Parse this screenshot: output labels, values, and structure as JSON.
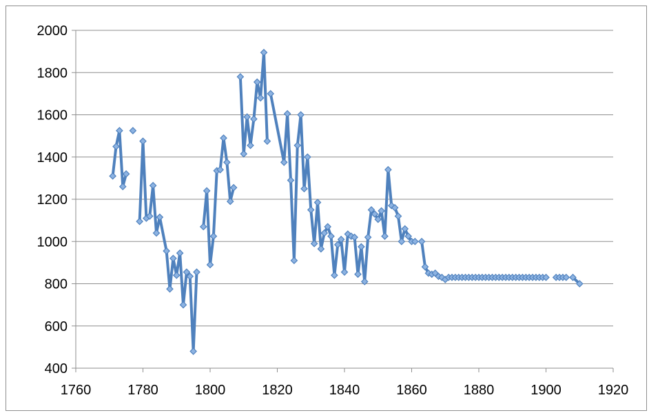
{
  "chart_data": {
    "type": "line",
    "title": "",
    "xlabel": "",
    "ylabel": "",
    "xlim": [
      1760,
      1920
    ],
    "ylim": [
      400,
      2000
    ],
    "x_ticks": [
      1760,
      1780,
      1800,
      1820,
      1840,
      1860,
      1880,
      1900,
      1920
    ],
    "y_ticks": [
      400,
      600,
      800,
      1000,
      1200,
      1400,
      1600,
      1800,
      2000
    ],
    "grid": true,
    "legend": "none",
    "colors": {
      "series": "#4f81bd",
      "marker": "#8db3e2",
      "grid": "#8e8e8e",
      "axis": "#8e8e8e"
    },
    "series": [
      {
        "values": [
          [
            1771,
            1310
          ],
          [
            1772,
            1450
          ],
          [
            1773,
            1525
          ],
          [
            1774,
            1260
          ],
          [
            1775,
            1320
          ],
          [
            1777,
            1525
          ],
          [
            1779,
            1095
          ],
          [
            1780,
            1475
          ],
          [
            1781,
            1110
          ],
          [
            1782,
            1120
          ],
          [
            1783,
            1265
          ],
          [
            1784,
            1040
          ],
          [
            1785,
            1115
          ],
          [
            1787,
            955
          ],
          [
            1788,
            775
          ],
          [
            1789,
            920
          ],
          [
            1790,
            840
          ],
          [
            1791,
            945
          ],
          [
            1792,
            700
          ],
          [
            1793,
            855
          ],
          [
            1794,
            835
          ],
          [
            1795,
            480
          ],
          [
            1796,
            855
          ],
          [
            1798,
            1070
          ],
          [
            1799,
            1240
          ],
          [
            1800,
            890
          ],
          [
            1801,
            1025
          ],
          [
            1802,
            1335
          ],
          [
            1803,
            1340
          ],
          [
            1804,
            1490
          ],
          [
            1805,
            1375
          ],
          [
            1806,
            1190
          ],
          [
            1807,
            1255
          ],
          [
            1809,
            1780
          ],
          [
            1810,
            1415
          ],
          [
            1811,
            1590
          ],
          [
            1812,
            1455
          ],
          [
            1813,
            1580
          ],
          [
            1814,
            1755
          ],
          [
            1815,
            1680
          ],
          [
            1816,
            1895
          ],
          [
            1817,
            1475
          ],
          [
            1818,
            1700
          ],
          [
            1822,
            1375
          ],
          [
            1823,
            1605
          ],
          [
            1824,
            1290
          ],
          [
            1825,
            910
          ],
          [
            1826,
            1455
          ],
          [
            1827,
            1600
          ],
          [
            1828,
            1250
          ],
          [
            1829,
            1400
          ],
          [
            1830,
            1150
          ],
          [
            1831,
            990
          ],
          [
            1832,
            1185
          ],
          [
            1833,
            965
          ],
          [
            1834,
            1040
          ],
          [
            1835,
            1070
          ],
          [
            1836,
            1025
          ],
          [
            1837,
            840
          ],
          [
            1838,
            985
          ],
          [
            1839,
            1010
          ],
          [
            1840,
            855
          ],
          [
            1841,
            1035
          ],
          [
            1842,
            1025
          ],
          [
            1843,
            1020
          ],
          [
            1844,
            845
          ],
          [
            1845,
            975
          ],
          [
            1846,
            810
          ],
          [
            1847,
            1020
          ],
          [
            1848,
            1150
          ],
          [
            1849,
            1130
          ],
          [
            1850,
            1105
          ],
          [
            1851,
            1145
          ],
          [
            1852,
            1025
          ],
          [
            1853,
            1340
          ],
          [
            1854,
            1170
          ],
          [
            1855,
            1160
          ],
          [
            1856,
            1120
          ],
          [
            1857,
            1000
          ],
          [
            1858,
            1060
          ],
          [
            1859,
            1025
          ],
          [
            1860,
            1000
          ],
          [
            1861,
            1000
          ],
          [
            1863,
            1000
          ],
          [
            1864,
            880
          ],
          [
            1865,
            850
          ],
          [
            1866,
            845
          ],
          [
            1867,
            850
          ],
          [
            1868,
            835
          ],
          [
            1869,
            830
          ],
          [
            1870,
            820
          ],
          [
            1871,
            830
          ],
          [
            1872,
            830
          ],
          [
            1873,
            830
          ],
          [
            1874,
            830
          ],
          [
            1875,
            830
          ],
          [
            1876,
            830
          ],
          [
            1877,
            830
          ],
          [
            1878,
            830
          ],
          [
            1879,
            830
          ],
          [
            1880,
            830
          ],
          [
            1881,
            830
          ],
          [
            1882,
            830
          ],
          [
            1883,
            830
          ],
          [
            1884,
            830
          ],
          [
            1885,
            830
          ],
          [
            1886,
            830
          ],
          [
            1887,
            830
          ],
          [
            1888,
            830
          ],
          [
            1889,
            830
          ],
          [
            1890,
            830
          ],
          [
            1891,
            830
          ],
          [
            1892,
            830
          ],
          [
            1893,
            830
          ],
          [
            1894,
            830
          ],
          [
            1895,
            830
          ],
          [
            1896,
            830
          ],
          [
            1897,
            830
          ],
          [
            1898,
            830
          ],
          [
            1899,
            830
          ],
          [
            1900,
            830
          ],
          [
            1903,
            830
          ],
          [
            1904,
            830
          ],
          [
            1905,
            830
          ],
          [
            1906,
            830
          ],
          [
            1908,
            830
          ],
          [
            1910,
            800
          ]
        ],
        "segments": [
          [
            0,
            4
          ],
          [
            5,
            5
          ],
          [
            6,
            22
          ],
          [
            23,
            32
          ],
          [
            33,
            41
          ],
          [
            42,
            82
          ],
          [
            83,
            120
          ],
          [
            121,
            124
          ],
          [
            125,
            126
          ]
        ]
      }
    ]
  }
}
